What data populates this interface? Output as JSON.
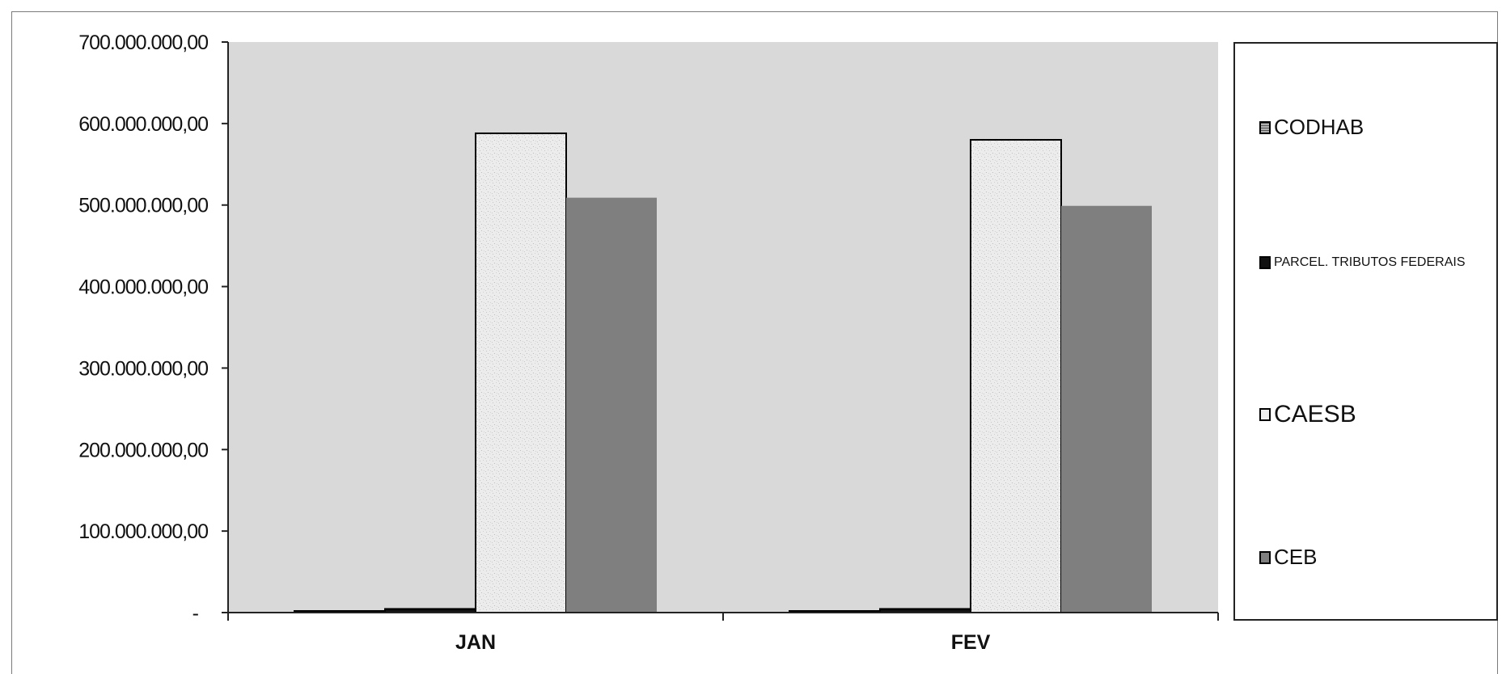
{
  "chart_data": {
    "type": "bar",
    "categories": [
      "JAN",
      "FEV"
    ],
    "series": [
      {
        "name": "CODHAB",
        "values": [
          1500000,
          1500000
        ],
        "color": "#9a9a9a"
      },
      {
        "name": "PARCEL. TRIBUTOS FEDERAIS",
        "values": [
          4500000,
          4500000
        ],
        "color": "#111111"
      },
      {
        "name": "CAESB",
        "values": [
          588000000,
          580000000
        ],
        "color": "#eeeeee"
      },
      {
        "name": "CEB",
        "values": [
          509000000,
          499000000
        ],
        "color": "#7f7f7f"
      }
    ],
    "ylim": [
      0,
      700000000
    ],
    "y_ticks": [
      "-",
      "100.000.000,00",
      "200.000.000,00",
      "300.000.000,00",
      "400.000.000,00",
      "500.000.000,00",
      "600.000.000,00",
      "700.000.000,00"
    ],
    "title": "",
    "xlabel": "",
    "ylabel": "",
    "grid": false,
    "plot_background": "#d9d9d9",
    "legend_position": "right"
  }
}
